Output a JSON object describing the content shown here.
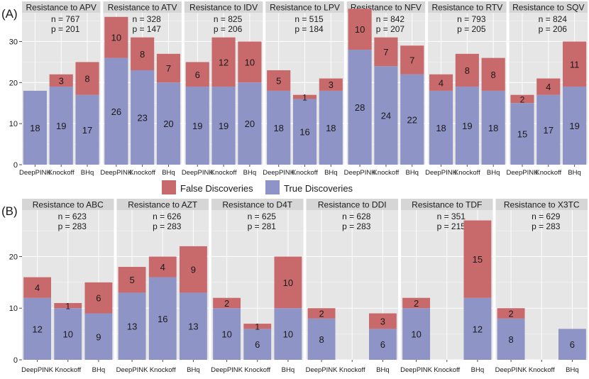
{
  "figure": {
    "legend": {
      "false_label": "False Discoveries",
      "true_label": "True Discoveries"
    },
    "colors": {
      "false": "#c8696c",
      "true": "#8f94c6",
      "panel": "#e6e6e6",
      "strip": "#d6d6d6",
      "grid": "#f7f7f7",
      "text": "#1a1a1a",
      "axis": "#4d4d4d"
    }
  },
  "chart_data": [
    {
      "type": "bar",
      "stacked": true,
      "panel_label": "(A)",
      "categories": [
        "DeepPINK",
        "Knockoff",
        "BHq"
      ],
      "ylim": [
        0,
        37
      ],
      "yticks": [
        0,
        10,
        20,
        30
      ],
      "facets": [
        {
          "title": "Resistance to APV",
          "n": "n = 767",
          "p": "p = 201",
          "true": [
            18,
            19,
            17
          ],
          "false": [
            0,
            3,
            8
          ]
        },
        {
          "title": "Resistance to ATV",
          "n": "n = 328",
          "p": "p = 147",
          "true": [
            26,
            23,
            20
          ],
          "false": [
            10,
            8,
            7
          ]
        },
        {
          "title": "Resistance to IDV",
          "n": "n = 825",
          "p": "p = 206",
          "true": [
            19,
            19,
            20
          ],
          "false": [
            6,
            12,
            10
          ]
        },
        {
          "title": "Resistance to LPV",
          "n": "n = 515",
          "p": "p = 184",
          "true": [
            18,
            16,
            18
          ],
          "false": [
            5,
            1,
            3
          ]
        },
        {
          "title": "Resistance to NFV",
          "n": "n = 842",
          "p": "p = 207",
          "true": [
            28,
            24,
            22
          ],
          "false": [
            10,
            7,
            7
          ]
        },
        {
          "title": "Resistance to RTV",
          "n": "n = 793",
          "p": "p = 205",
          "true": [
            18,
            19,
            18
          ],
          "false": [
            4,
            8,
            8
          ]
        },
        {
          "title": "Resistance to SQV",
          "n": "n = 824",
          "p": "p = 206",
          "true": [
            15,
            17,
            19
          ],
          "false": [
            2,
            4,
            11
          ]
        }
      ]
    },
    {
      "type": "bar",
      "stacked": true,
      "panel_label": "(B)",
      "categories": [
        "DeepPINK",
        "Knockoff",
        "BHq"
      ],
      "ylim": [
        0,
        29
      ],
      "yticks": [
        0,
        10,
        20
      ],
      "facets": [
        {
          "title": "Resistance to ABC",
          "n": "n = 623",
          "p": "p = 283",
          "true": [
            12,
            10,
            9
          ],
          "false": [
            4,
            1,
            6
          ]
        },
        {
          "title": "Resistance to AZT",
          "n": "n = 626",
          "p": "p = 283",
          "true": [
            13,
            16,
            13
          ],
          "false": [
            5,
            4,
            9
          ]
        },
        {
          "title": "Resistance to D4T",
          "n": "n = 625",
          "p": "p = 281",
          "true": [
            10,
            6,
            10
          ],
          "false": [
            2,
            1,
            10
          ]
        },
        {
          "title": "Resistance to DDI",
          "n": "n = 628",
          "p": "p = 283",
          "true": [
            8,
            0,
            6
          ],
          "false": [
            2,
            0,
            3
          ]
        },
        {
          "title": "Resistance to TDF",
          "n": "n = 351",
          "p": "p = 215",
          "true": [
            10,
            0,
            12
          ],
          "false": [
            2,
            0,
            15
          ]
        },
        {
          "title": "Resistance to X3TC",
          "n": "n = 629",
          "p": "p = 283",
          "true": [
            8,
            0,
            6
          ],
          "false": [
            2,
            0,
            0
          ]
        }
      ]
    }
  ]
}
